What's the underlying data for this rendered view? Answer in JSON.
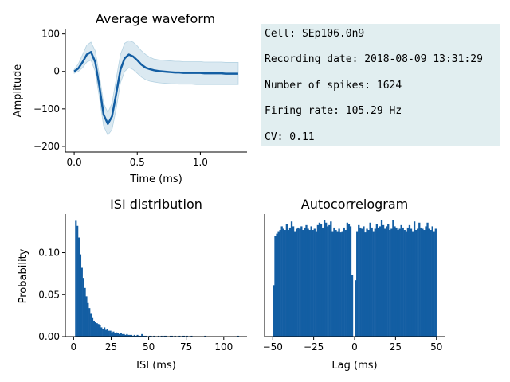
{
  "colors": {
    "accent": "#135ea3",
    "band": "#cfe2ec",
    "info_box": "#e1eef0"
  },
  "info_box": {
    "cell": "Cell: SEp106.0n9",
    "recording_date": "Recording date: 2018-08-09 13:31:29",
    "spikes": "Number of spikes: 1624",
    "firing_rate": "Firing rate: 105.29 Hz",
    "cv": "CV: 0.11"
  },
  "chart_data": [
    {
      "type": "line",
      "title": "Average waveform",
      "xlabel": "Time (ms)",
      "ylabel": "Amplitude",
      "xlim": [
        -0.07,
        1.37
      ],
      "ylim": [
        -215,
        112
      ],
      "xticks": [
        0.0,
        0.5,
        1.0
      ],
      "xtick_labels": [
        "0.0",
        "0.5",
        "1.0"
      ],
      "yticks": [
        -200,
        -100,
        0,
        100
      ],
      "ytick_labels": [
        "−200",
        "−100",
        "0",
        "100"
      ],
      "series": [
        {
          "x": [
            0.0,
            0.033,
            0.067,
            0.1,
            0.133,
            0.167,
            0.2,
            0.233,
            0.267,
            0.3,
            0.333,
            0.367,
            0.4,
            0.433,
            0.467,
            0.5,
            0.533,
            0.567,
            0.6,
            0.633,
            0.667,
            0.7,
            0.733,
            0.767,
            0.8,
            0.833,
            0.867,
            0.9,
            0.933,
            0.967,
            1.0,
            1.033,
            1.067,
            1.1,
            1.133,
            1.167,
            1.2,
            1.233,
            1.267,
            1.3
          ],
          "y": [
            0,
            8,
            25,
            45,
            52,
            25,
            -40,
            -115,
            -140,
            -120,
            -60,
            5,
            35,
            45,
            40,
            30,
            18,
            10,
            6,
            3,
            1,
            0,
            -1,
            -2,
            -3,
            -3,
            -4,
            -4,
            -4,
            -4,
            -4,
            -5,
            -5,
            -5,
            -5,
            -5,
            -6,
            -6,
            -6,
            -6
          ],
          "lower": [
            -5,
            0,
            10,
            25,
            30,
            0,
            -70,
            -145,
            -170,
            -155,
            -100,
            -30,
            0,
            10,
            5,
            -5,
            -15,
            -22,
            -26,
            -28,
            -30,
            -31,
            -32,
            -33,
            -33,
            -34,
            -34,
            -34,
            -34,
            -35,
            -35,
            -35,
            -35,
            -35,
            -35,
            -35,
            -35,
            -35,
            -35,
            -35
          ],
          "upper": [
            5,
            20,
            45,
            70,
            78,
            55,
            -10,
            -85,
            -110,
            -85,
            -20,
            45,
            75,
            82,
            78,
            68,
            55,
            45,
            38,
            33,
            31,
            30,
            29,
            28,
            27,
            27,
            26,
            26,
            26,
            26,
            26,
            25,
            25,
            25,
            25,
            25,
            24,
            24,
            24,
            24
          ]
        }
      ]
    },
    {
      "type": "bar",
      "title": "ISI distribution",
      "xlabel": "ISI (ms)",
      "ylabel": "Probability",
      "xlim": [
        -5.5,
        115.5
      ],
      "ylim": [
        0,
        0.146
      ],
      "xticks": [
        0,
        25,
        50,
        75,
        100
      ],
      "xtick_labels": [
        "0",
        "25",
        "50",
        "75",
        "100"
      ],
      "yticks": [
        0.0,
        0.05,
        0.1
      ],
      "ytick_labels": [
        "0.00",
        "0.05",
        "0.10"
      ],
      "bin_width": 1,
      "bin_start": 1,
      "values": [
        0.138,
        0.132,
        0.118,
        0.098,
        0.082,
        0.07,
        0.058,
        0.048,
        0.04,
        0.034,
        0.028,
        0.023,
        0.019,
        0.018,
        0.016,
        0.015,
        0.014,
        0.011,
        0.009,
        0.011,
        0.008,
        0.009,
        0.007,
        0.007,
        0.005,
        0.006,
        0.004,
        0.005,
        0.004,
        0.003,
        0.004,
        0.003,
        0.003,
        0.002,
        0.003,
        0.002,
        0.002,
        0.002,
        0.001,
        0.002,
        0.001,
        0.002,
        0.001,
        0.001,
        0.003,
        0.001,
        0.001,
        0.001,
        0.0,
        0.001,
        0.001,
        0.0,
        0.001,
        0.0,
        0.0,
        0.001,
        0.0,
        0.001,
        0.0,
        0.001,
        0.001,
        0.0,
        0.0,
        0.001,
        0.001,
        0.0,
        0.001,
        0.0,
        0.0,
        0.001,
        0.0,
        0.001,
        0.001,
        0.0,
        0.001,
        0.0,
        0.0,
        0.001,
        0.0,
        0.0,
        0.0,
        0.0,
        0.0,
        0.0,
        0.0,
        0.0,
        0.001,
        0.0,
        0.0,
        0.0,
        0.0,
        0.0,
        0.0,
        0.0,
        0.0,
        0.0,
        0.0,
        0.0,
        0.0,
        0.0,
        0.0,
        0.0,
        0.0,
        0.0,
        0.0,
        0.0,
        0.0,
        0.0,
        0.001
      ]
    },
    {
      "type": "bar",
      "title": "Autocorrelogram",
      "xlabel": "Lag (ms)",
      "ylabel": "",
      "xlim": [
        -55,
        55
      ],
      "xticks": [
        -50,
        -25,
        0,
        25,
        50
      ],
      "xtick_labels": [
        "−50",
        "−25",
        "0",
        "25",
        "50"
      ],
      "yticks": [],
      "bin_width": 1,
      "bin_start": -50,
      "values": [
        0.42,
        0.82,
        0.84,
        0.86,
        0.87,
        0.9,
        0.88,
        0.87,
        0.92,
        0.87,
        0.89,
        0.94,
        0.9,
        0.86,
        0.88,
        0.89,
        0.88,
        0.9,
        0.87,
        0.89,
        0.91,
        0.88,
        0.87,
        0.9,
        0.87,
        0.88,
        0.86,
        0.91,
        0.93,
        0.92,
        0.89,
        0.95,
        0.93,
        0.9,
        0.91,
        0.94,
        0.86,
        0.89,
        0.87,
        0.86,
        0.88,
        0.85,
        0.86,
        0.89,
        0.87,
        0.93,
        0.92,
        0.9,
        0.5,
        0.0,
        0.46,
        0.86,
        0.91,
        0.89,
        0.88,
        0.9,
        0.85,
        0.88,
        0.87,
        0.93,
        0.89,
        0.86,
        0.88,
        0.92,
        0.89,
        0.9,
        0.95,
        0.91,
        0.88,
        0.9,
        0.92,
        0.87,
        0.88,
        0.95,
        0.9,
        0.89,
        0.87,
        0.88,
        0.91,
        0.89,
        0.87,
        0.86,
        0.89,
        0.91,
        0.88,
        0.86,
        0.94,
        0.87,
        0.88,
        0.93,
        0.89,
        0.88,
        0.87,
        0.9,
        0.93,
        0.88,
        0.87,
        0.9,
        0.86,
        0.88
      ]
    }
  ]
}
